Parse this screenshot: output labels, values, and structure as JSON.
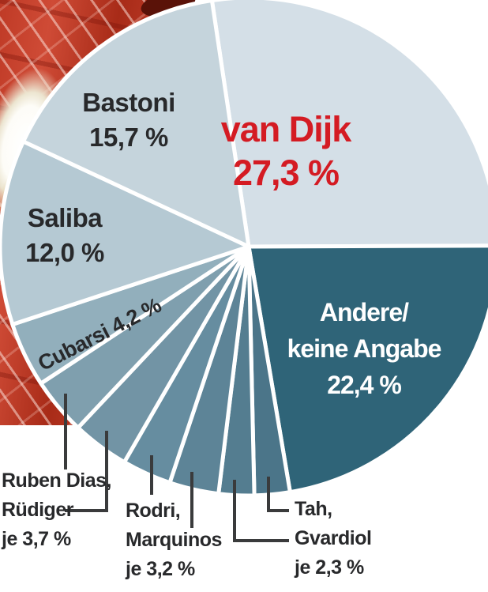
{
  "chart_data": {
    "type": "pie",
    "title": "",
    "unit": "%",
    "legend": "none (labels placed on/around slices)",
    "start_angle_deg": -8.5,
    "clockwise": true,
    "stroke": {
      "color": "#ffffff",
      "width": 5
    },
    "categories": [
      "van Dijk",
      "Andere/keine Angabe",
      "Tah",
      "Gvardiol",
      "Marquinos",
      "Rodri",
      "Rüdiger",
      "Ruben Dias",
      "Cubarsi",
      "Saliba",
      "Bastoni"
    ],
    "values": [
      27.3,
      22.4,
      2.3,
      2.3,
      3.2,
      3.2,
      3.7,
      3.7,
      4.2,
      12.0,
      15.7
    ],
    "segments": [
      {
        "slug": "van-dijk",
        "label": "van Dijk",
        "value": 27.3,
        "display": "27,3 %",
        "color": "#d4dfe7",
        "text_color": "#d41b23"
      },
      {
        "slug": "andere",
        "label": "Andere/keine Angabe",
        "value": 22.4,
        "display": "22,4 %",
        "color": "#2f6478",
        "text_color": "#ffffff"
      },
      {
        "slug": "tah",
        "label": "Tah",
        "value": 2.3,
        "display": "je 2,3 %",
        "color": "#4b7589",
        "text_color": "#28292b"
      },
      {
        "slug": "gvardiol",
        "label": "Gvardiol",
        "value": 2.3,
        "display": "je 2,3 %",
        "color": "#547d90",
        "text_color": "#28292b"
      },
      {
        "slug": "marquinos",
        "label": "Marquinos",
        "value": 3.2,
        "display": "je 3,2 %",
        "color": "#5d8497",
        "text_color": "#28292b"
      },
      {
        "slug": "rodri",
        "label": "Rodri",
        "value": 3.2,
        "display": "je 3,2 %",
        "color": "#668da0",
        "text_color": "#28292b"
      },
      {
        "slug": "ruediger",
        "label": "Rüdiger",
        "value": 3.7,
        "display": "je 3,7 %",
        "color": "#7294a5",
        "text_color": "#28292b"
      },
      {
        "slug": "ruben-dias",
        "label": "Ruben Dias",
        "value": 3.7,
        "display": "je 3,7 %",
        "color": "#7f9fae",
        "text_color": "#28292b"
      },
      {
        "slug": "cubarsi",
        "label": "Cubarsi",
        "value": 4.2,
        "display": "4,2 %",
        "color": "#92afbc",
        "text_color": "#28292b"
      },
      {
        "slug": "saliba",
        "label": "Saliba",
        "value": 12.0,
        "display": "12,0 %",
        "color": "#b5c9d3",
        "text_color": "#28292b"
      },
      {
        "slug": "bastoni",
        "label": "Bastoni",
        "value": 15.7,
        "display": "15,7 %",
        "color": "#c5d4dc",
        "text_color": "#28292b"
      }
    ],
    "callout_line_color": "#3a3b3c"
  },
  "labels": {
    "van_dijk": {
      "line1": "van Dijk",
      "line2": "27,3 %"
    },
    "bastoni": {
      "line1": "Bastoni",
      "line2": "15,7 %"
    },
    "saliba": {
      "line1": "Saliba",
      "line2": "12,0 %"
    },
    "cubarsi": {
      "line1": "Cubarsi 4,2 %"
    },
    "andere": {
      "line1": "Andere/",
      "line2": "keine Angabe",
      "line3": "22,4 %"
    },
    "ruben_dias": {
      "line1": "Ruben Dias,",
      "line2": "Rüdiger",
      "line3": "je 3,7 %"
    },
    "rodri": {
      "line1": "Rodri,",
      "line2": "Marquinos",
      "line3": "je 3,2 %"
    },
    "tah": {
      "line1": "Tah,",
      "line2": "Gvardiol",
      "line3": "je 2,3 %"
    }
  }
}
